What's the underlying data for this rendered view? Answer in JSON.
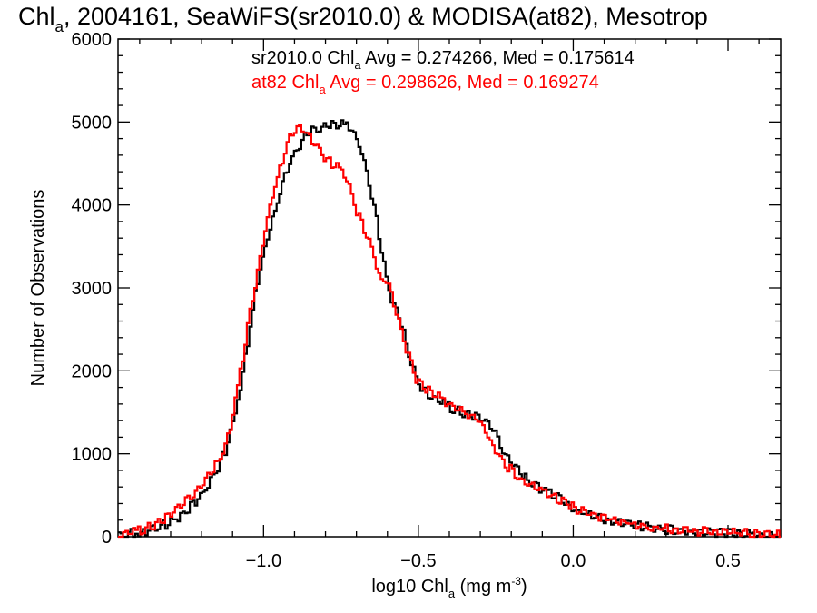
{
  "chart_data": {
    "type": "line",
    "title": "Chl",
    "title_sub": "a",
    "title_rest": ", 2004161, SeaWiFS(sr2010.0) & MODISA(at82), Mesotrop",
    "xlabel": "log10 Chl",
    "xlabel_sub": "a",
    "xlabel_rest": " (mg m",
    "xlabel_sup": "-3",
    "xlabel_end": ")",
    "ylabel": "Number of Observations",
    "xlim": [
      -1.47,
      0.67
    ],
    "ylim": [
      0,
      6000
    ],
    "xticks": [
      -1.0,
      -0.5,
      0.0,
      0.5
    ],
    "xtick_labels": [
      "−1.0",
      "−0.5",
      "0.0",
      "0.5"
    ],
    "yticks": [
      0,
      1000,
      2000,
      3000,
      4000,
      5000,
      6000
    ],
    "ytick_labels": [
      "0",
      "1000",
      "2000",
      "3000",
      "4000",
      "5000",
      "6000"
    ],
    "step": true,
    "annotations": [
      {
        "pre": "sr2010.0 Chl",
        "sub": "a",
        "post": " Avg = 0.274266, Med = 0.175614",
        "color": "#000000"
      },
      {
        "pre": "at82 Chl",
        "sub": "a",
        "post": " Avg = 0.298626, Med = 0.169274",
        "color": "#ff0000"
      }
    ],
    "series": [
      {
        "color": "#000000",
        "points": [
          [
            -1.46,
            20
          ],
          [
            -1.4,
            50
          ],
          [
            -1.35,
            100
          ],
          [
            -1.3,
            170
          ],
          [
            -1.25,
            300
          ],
          [
            -1.2,
            500
          ],
          [
            -1.15,
            800
          ],
          [
            -1.12,
            1050
          ],
          [
            -1.1,
            1350
          ],
          [
            -1.08,
            1700
          ],
          [
            -1.06,
            2100
          ],
          [
            -1.04,
            2600
          ],
          [
            -1.02,
            3050
          ],
          [
            -1.0,
            3400
          ],
          [
            -0.98,
            3700
          ],
          [
            -0.96,
            3950
          ],
          [
            -0.94,
            4250
          ],
          [
            -0.92,
            4450
          ],
          [
            -0.9,
            4600
          ],
          [
            -0.88,
            4750
          ],
          [
            -0.86,
            4850
          ],
          [
            -0.84,
            4900
          ],
          [
            -0.82,
            4920
          ],
          [
            -0.8,
            4950
          ],
          [
            -0.78,
            4980
          ],
          [
            -0.76,
            4970
          ],
          [
            -0.74,
            4960
          ],
          [
            -0.72,
            4950
          ],
          [
            -0.7,
            4800
          ],
          [
            -0.68,
            4600
          ],
          [
            -0.66,
            4300
          ],
          [
            -0.64,
            3950
          ],
          [
            -0.62,
            3500
          ],
          [
            -0.6,
            3050
          ],
          [
            -0.58,
            2800
          ],
          [
            -0.56,
            2650
          ],
          [
            -0.54,
            2350
          ],
          [
            -0.52,
            2100
          ],
          [
            -0.5,
            1850
          ],
          [
            -0.46,
            1700
          ],
          [
            -0.4,
            1560
          ],
          [
            -0.34,
            1480
          ],
          [
            -0.3,
            1430
          ],
          [
            -0.26,
            1300
          ],
          [
            -0.22,
            1000
          ],
          [
            -0.18,
            820
          ],
          [
            -0.14,
            650
          ],
          [
            -0.1,
            580
          ],
          [
            -0.06,
            500
          ],
          [
            -0.02,
            400
          ],
          [
            0.02,
            300
          ],
          [
            0.08,
            220
          ],
          [
            0.14,
            170
          ],
          [
            0.2,
            130
          ],
          [
            0.26,
            110
          ],
          [
            0.32,
            80
          ],
          [
            0.4,
            60
          ],
          [
            0.5,
            40
          ],
          [
            0.6,
            20
          ],
          [
            0.67,
            10
          ]
        ]
      },
      {
        "color": "#ff0000",
        "points": [
          [
            -1.46,
            30
          ],
          [
            -1.4,
            70
          ],
          [
            -1.35,
            150
          ],
          [
            -1.3,
            260
          ],
          [
            -1.25,
            420
          ],
          [
            -1.2,
            620
          ],
          [
            -1.15,
            880
          ],
          [
            -1.12,
            1100
          ],
          [
            -1.1,
            1450
          ],
          [
            -1.08,
            1850
          ],
          [
            -1.06,
            2300
          ],
          [
            -1.04,
            2750
          ],
          [
            -1.02,
            3150
          ],
          [
            -1.0,
            3600
          ],
          [
            -0.98,
            3950
          ],
          [
            -0.96,
            4250
          ],
          [
            -0.94,
            4500
          ],
          [
            -0.92,
            4750
          ],
          [
            -0.9,
            4900
          ],
          [
            -0.88,
            4950
          ],
          [
            -0.86,
            4850
          ],
          [
            -0.84,
            4750
          ],
          [
            -0.82,
            4650
          ],
          [
            -0.8,
            4550
          ],
          [
            -0.78,
            4500
          ],
          [
            -0.76,
            4450
          ],
          [
            -0.74,
            4400
          ],
          [
            -0.72,
            4200
          ],
          [
            -0.7,
            3950
          ],
          [
            -0.68,
            3750
          ],
          [
            -0.66,
            3600
          ],
          [
            -0.64,
            3350
          ],
          [
            -0.62,
            3100
          ],
          [
            -0.6,
            3100
          ],
          [
            -0.58,
            2850
          ],
          [
            -0.56,
            2550
          ],
          [
            -0.54,
            2300
          ],
          [
            -0.52,
            2050
          ],
          [
            -0.5,
            1850
          ],
          [
            -0.46,
            1750
          ],
          [
            -0.4,
            1600
          ],
          [
            -0.34,
            1480
          ],
          [
            -0.3,
            1380
          ],
          [
            -0.26,
            1100
          ],
          [
            -0.22,
            880
          ],
          [
            -0.18,
            720
          ],
          [
            -0.14,
            620
          ],
          [
            -0.1,
            560
          ],
          [
            -0.06,
            480
          ],
          [
            -0.02,
            400
          ],
          [
            0.02,
            320
          ],
          [
            0.08,
            240
          ],
          [
            0.14,
            190
          ],
          [
            0.2,
            150
          ],
          [
            0.26,
            120
          ],
          [
            0.32,
            90
          ],
          [
            0.4,
            70
          ],
          [
            0.5,
            50
          ],
          [
            0.6,
            30
          ],
          [
            0.67,
            20
          ]
        ]
      }
    ]
  }
}
